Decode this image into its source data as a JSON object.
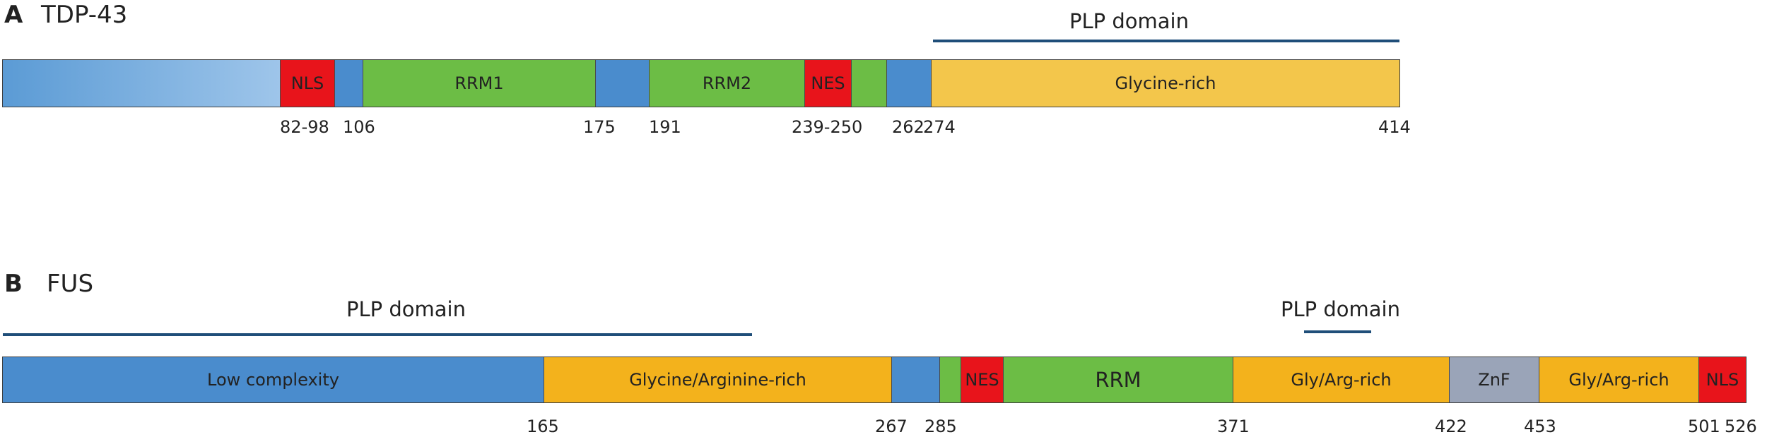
{
  "panel_a": {
    "letter": "A",
    "title": "TDP-43",
    "plp_label": "PLP domain",
    "segments": [
      {
        "label": "",
        "color": "#5b9bd5",
        "gradient": true
      },
      {
        "label": "NLS",
        "color": "#e8141b"
      },
      {
        "label": "",
        "color": "#4a8ccd"
      },
      {
        "label": "RRM1",
        "color": "#6cbd45"
      },
      {
        "label": "",
        "color": "#4a8ccd"
      },
      {
        "label": "RRM2",
        "color": "#6cbd45"
      },
      {
        "label": "NES",
        "color": "#e8141b"
      },
      {
        "label": "",
        "color": "#6cbd45"
      },
      {
        "label": "",
        "color": "#4a8ccd"
      },
      {
        "label": "Glycine-rich",
        "color": "#f3c64b"
      }
    ],
    "ticks": [
      "82-98",
      "106",
      "175",
      "191",
      "239-250",
      "262",
      "274",
      "414"
    ]
  },
  "panel_b": {
    "letter": "B",
    "title": "FUS",
    "plp_label_1": "PLP domain",
    "plp_label_2": "PLP domain",
    "segments": [
      {
        "label": "Low complexity",
        "color": "#4a8ccd"
      },
      {
        "label": "Glycine/Arginine-rich",
        "color": "#f3b21c"
      },
      {
        "label": "",
        "color": "#4a8ccd"
      },
      {
        "label": "",
        "color": "#6cbd45"
      },
      {
        "label": "NES",
        "color": "#e8141b"
      },
      {
        "label": "RRM",
        "color": "#6cbd45"
      },
      {
        "label": "Gly/Arg-rich",
        "color": "#f3b21c"
      },
      {
        "label": "ZnF",
        "color": "#9aa4b8"
      },
      {
        "label": "Gly/Arg-rich",
        "color": "#f3b21c"
      },
      {
        "label": "NLS",
        "color": "#e8141b"
      }
    ],
    "ticks": [
      "165",
      "267",
      "285",
      "371",
      "422",
      "453",
      "501",
      "526"
    ]
  }
}
